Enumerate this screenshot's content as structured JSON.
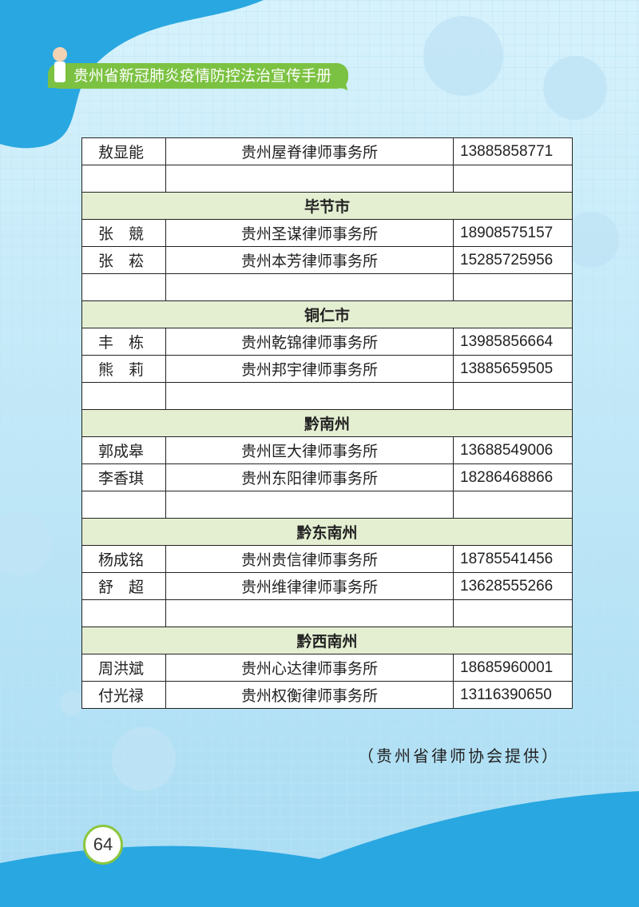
{
  "header": {
    "title": "贵州省新冠肺炎疫情防控法治宣传手册"
  },
  "table": {
    "sections": [
      {
        "entries": [
          [
            "敖显能",
            "贵州屋脊律师事务所",
            "13885858771"
          ]
        ]
      },
      {
        "region": "毕节市",
        "entries": [
          [
            "张　競",
            "贵州圣谋律师事务所",
            "18908575157"
          ],
          [
            "张　菘",
            "贵州本芳律师事务所",
            "15285725956"
          ]
        ]
      },
      {
        "region": "铜仁市",
        "entries": [
          [
            "丰　栋",
            "贵州乾锦律师事务所",
            "13985856664"
          ],
          [
            "熊　莉",
            "贵州邦宇律师事务所",
            "13885659505"
          ]
        ]
      },
      {
        "region": "黔南州",
        "entries": [
          [
            "郭成皋",
            "贵州匡大律师事务所",
            "13688549006"
          ],
          [
            "李香琪",
            "贵州东阳律师事务所",
            "18286468866"
          ]
        ]
      },
      {
        "region": "黔东南州",
        "entries": [
          [
            "杨成铭",
            "贵州贵信律师事务所",
            "18785541456"
          ],
          [
            "舒　超",
            "贵州维律律师事务所",
            "13628555266"
          ]
        ]
      },
      {
        "region": "黔西南州",
        "entries": [
          [
            "周洪斌",
            "贵州心达律师事务所",
            "18685960001"
          ],
          [
            "付光禄",
            "贵州权衡律师事务所",
            "13116390650"
          ]
        ]
      }
    ]
  },
  "source": "（贵州省律师协会提供）",
  "page_number": "64"
}
